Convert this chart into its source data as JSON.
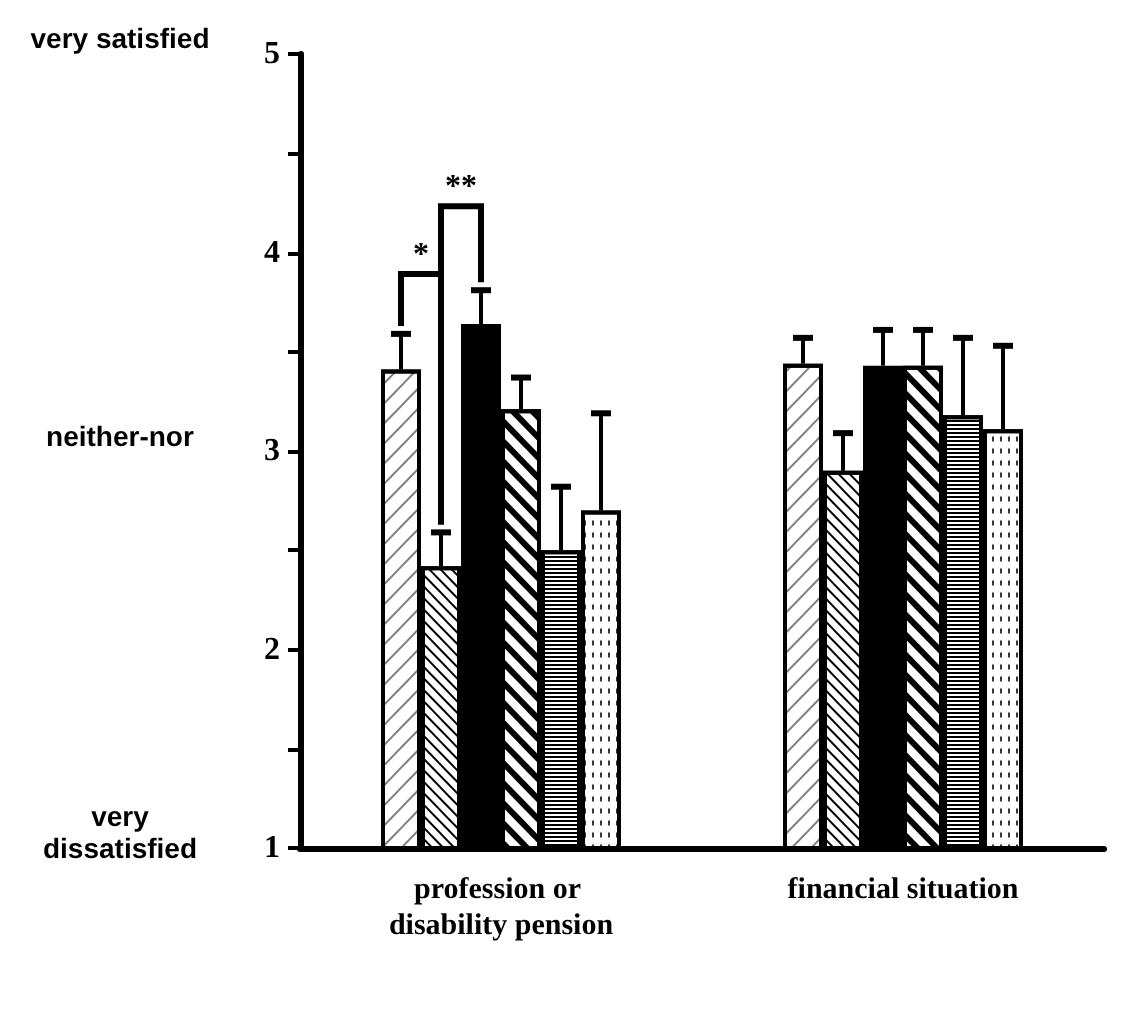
{
  "chart_data": {
    "type": "bar",
    "categories": [
      "profession or disability pension",
      "financial situation"
    ],
    "series": [
      {
        "color": "#ffffff",
        "values": [
          3.41,
          3.44
        ],
        "errors": [
          [
            3.41,
            3.59
          ],
          [
            3.44,
            3.57
          ]
        ]
      },
      {
        "color": "#ffffff",
        "values": [
          2.42,
          2.9
        ],
        "errors": [
          [
            2.42,
            2.59
          ],
          [
            2.9,
            3.09
          ]
        ]
      },
      {
        "color": "#000000",
        "values": [
          3.64,
          3.43
        ],
        "errors": [
          [
            3.64,
            3.81
          ],
          [
            3.43,
            3.61
          ]
        ]
      },
      {
        "color": "#ffffff",
        "values": [
          3.21,
          3.43
        ],
        "errors": [
          [
            3.21,
            3.37
          ],
          [
            3.43,
            3.61
          ]
        ]
      },
      {
        "color": "#ffffff",
        "values": [
          2.5,
          3.18
        ],
        "errors": [
          [
            2.5,
            2.82
          ],
          [
            3.18,
            3.57
          ]
        ]
      },
      {
        "color": "#ffffff",
        "values": [
          2.7,
          3.11
        ],
        "errors": [
          [
            2.7,
            3.19
          ],
          [
            3.11,
            3.53
          ]
        ]
      }
    ],
    "ylim": [
      1,
      5
    ],
    "yticks": [
      1,
      {
        "value": 1.5,
        "label": null
      },
      2,
      {
        "value": 2.5,
        "label": null
      },
      3,
      {
        "value": 3.5,
        "label": null
      },
      4,
      {
        "value": 4.5,
        "label": null
      },
      5
    ],
    "annotations": [
      "*",
      "**",
      "very satisfied",
      "neither-nor",
      "very dissatisfied"
    ],
    "grid": false
  }
}
